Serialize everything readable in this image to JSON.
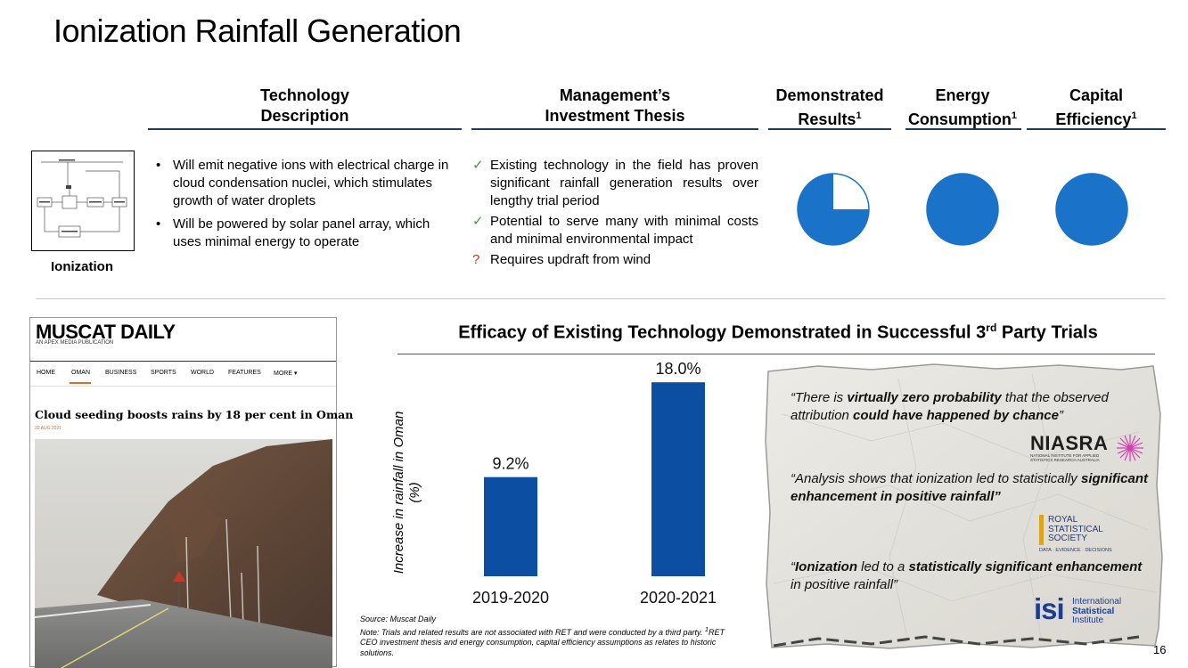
{
  "page": {
    "title": "Ionization Rainfall Generation",
    "page_number": "16"
  },
  "columns": {
    "technology": {
      "line1": "Technology",
      "line2": "Description"
    },
    "thesis": {
      "line1": "Management’s",
      "line2": "Investment Thesis"
    },
    "results": {
      "line1": "Demonstrated",
      "line2": "Results",
      "sup": "1"
    },
    "energy": {
      "line1": "Energy",
      "line2": "Consumption",
      "sup": "1"
    },
    "capital": {
      "line1": "Capital",
      "line2": "Efficiency",
      "sup": "1"
    }
  },
  "technology": {
    "label": "Ionization",
    "bullets": [
      "Will emit negative ions with electrical charge in cloud condensation nuclei, which stimulates growth of water droplets",
      "Will be powered by solar panel array, which uses minimal energy to operate"
    ]
  },
  "thesis": {
    "items": [
      {
        "mark": "✓",
        "text": "Existing technology in the field has proven significant rainfall generation results over lengthy trial period"
      },
      {
        "mark": "✓",
        "text": "Potential to serve many with minimal costs and minimal environmental impact"
      },
      {
        "mark": "?",
        "text": "Requires updraft from wind"
      }
    ]
  },
  "ratings": {
    "results_fraction": 0.75,
    "energy_fraction": 1.0,
    "capital_fraction": 1.0,
    "fill_color": "#1a73c8"
  },
  "news": {
    "logo": "MUSCAT DAILY",
    "tagline": "AN APEX MEDIA PUBLICATION",
    "nav": [
      "HOME",
      "OMAN",
      "BUSINESS",
      "SPORTS",
      "WORLD",
      "FEATURES",
      "MORE ▾"
    ],
    "headline": "Cloud seeding boosts rains by 18 per cent in Oman",
    "date": "22 AUG 2021"
  },
  "chart_data": {
    "type": "bar",
    "title": "Efficacy of Existing Technology Demonstrated in Successful 3rd Party Trials",
    "title_main": "Efficacy of Existing Technology Demonstrated in Successful 3",
    "title_sup": "rd",
    "title_end": " Party Trials",
    "categories": [
      "2019-2020",
      "2020-2021"
    ],
    "values": [
      9.2,
      18.0
    ],
    "data_labels": [
      "9.2%",
      "18.0%"
    ],
    "ylabel": "Increase in rainfall in Oman (%)",
    "ylim": [
      0,
      20
    ],
    "bar_color": "#0b4ea2"
  },
  "note": {
    "source": "Source: Muscat Daily",
    "text_a": "Note: Trials and related results are not associated with RET and were conducted by a third party. ",
    "sup": "1",
    "text_b": "RET CEO investment thesis and energy consumption, capital efficiency assumptions as relates to historic solutions."
  },
  "quotes": {
    "q1": {
      "a": "“There is ",
      "b": "virtually zero probability",
      "c": " that the observed attribution ",
      "d": "could have happened by chance",
      "e": "”"
    },
    "q2": {
      "a": "“Analysis shows that ionization led to statistically ",
      "b": "significant enhancement in positive rainfall”"
    },
    "q3": {
      "a": "“",
      "b": "Ionization",
      "c": " led to a ",
      "d": "statistically significant enhancement",
      "e": " in positive rainfall”"
    }
  },
  "logos": {
    "niasra": {
      "name": "NIASRA",
      "sub1": "NATIONAL INSTITUTE FOR APPLIED",
      "sub2": "STATISTICS RESEARCH AUSTRALIA"
    },
    "rss": {
      "l1": "ROYAL",
      "l2": "STATISTICAL",
      "l3": "SOCIETY",
      "tag": "DATA · EVIDENCE · DECISIONS"
    },
    "isi": {
      "mark": "isi",
      "l1": "International",
      "l2": "Statistical",
      "l3": "Institute"
    }
  }
}
